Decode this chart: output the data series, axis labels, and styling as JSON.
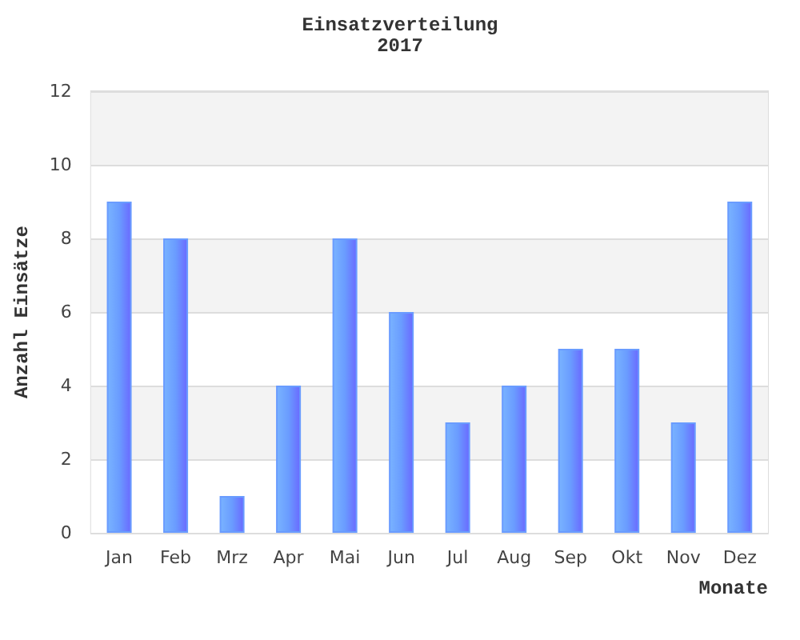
{
  "chart_data": {
    "type": "bar",
    "title": "Einsatzverteilung",
    "subtitle": "2017",
    "xlabel": "Monate",
    "ylabel": "Anzahl Einsätze",
    "categories": [
      "Jan",
      "Feb",
      "Mrz",
      "Apr",
      "Mai",
      "Jun",
      "Jul",
      "Aug",
      "Sep",
      "Okt",
      "Nov",
      "Dez"
    ],
    "values": [
      9,
      8,
      1,
      4,
      8,
      6,
      3,
      4,
      5,
      5,
      3,
      9
    ],
    "color": "#6a9cff",
    "ylim": [
      0,
      12
    ],
    "yticks": [
      0,
      2,
      4,
      6,
      8,
      10,
      12
    ],
    "grid": "y"
  }
}
